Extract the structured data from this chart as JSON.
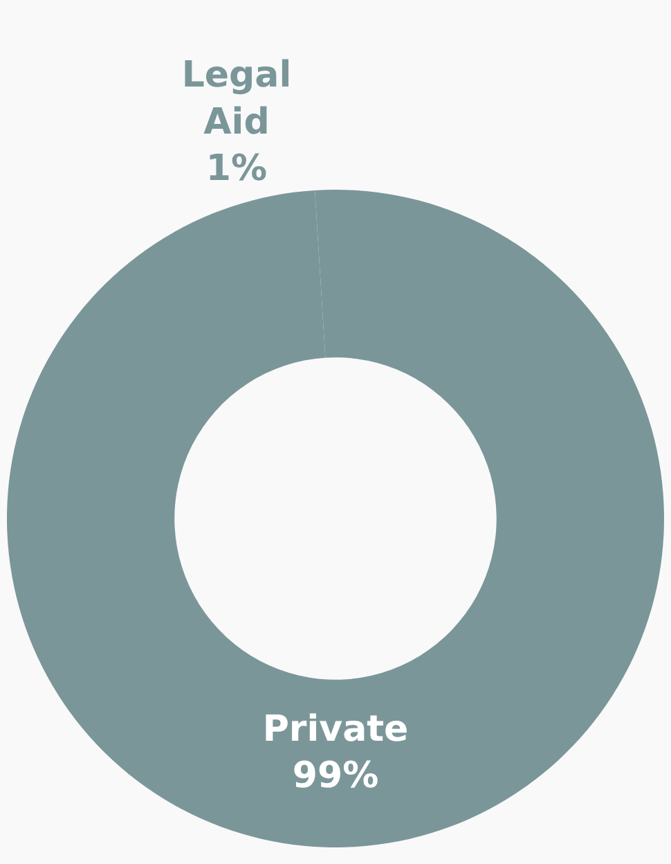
{
  "chart_data": {
    "type": "donut",
    "categories": [
      "Private",
      "Legal Aid"
    ],
    "values": [
      99,
      1
    ],
    "value_labels": [
      "99%",
      "1%"
    ],
    "colors": [
      "#7b9699",
      "#7b9699"
    ],
    "legend": false
  }
}
